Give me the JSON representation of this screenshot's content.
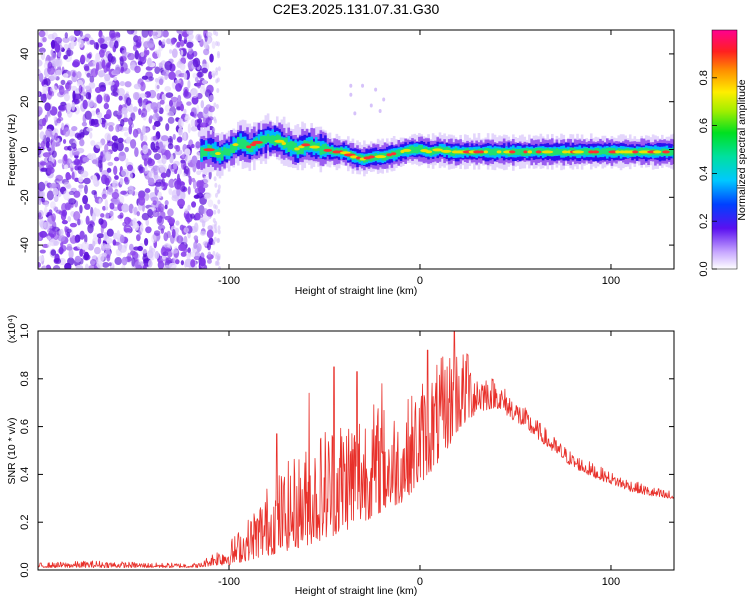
{
  "title": "C2E3.2025.131.07.31.G30",
  "colors": {
    "background": "#ffffff",
    "frame": "#000000",
    "snr_line": "#e8302a",
    "spectrogram_noise": "#8c3ee6",
    "spectrogram_signal_edge": "#1c00f0",
    "spectrogram_signal_core": "#e8302a"
  },
  "chart_data": [
    {
      "type": "heatmap",
      "name": "spectrogram",
      "xlabel": "Height of straight line (km)",
      "ylabel": "Frequency (Hz)",
      "xlim": [
        -200,
        133
      ],
      "ylim": [
        -50,
        50
      ],
      "xticks": [
        {
          "value": -100,
          "label": "-100"
        },
        {
          "value": 0,
          "label": "0"
        },
        {
          "value": 100,
          "label": "100"
        }
      ],
      "yticks": [
        {
          "value": -40,
          "label": "-40"
        },
        {
          "value": -20,
          "label": "-20"
        },
        {
          "value": 0,
          "label": "0"
        },
        {
          "value": 20,
          "label": "20"
        },
        {
          "value": 40,
          "label": "40"
        }
      ],
      "noise_region": {
        "x_from": -200,
        "x_to": -108,
        "f_from": -50,
        "f_to": 50
      },
      "signal_ridge": {
        "x": [
          -115,
          -110,
          -105,
          -100,
          -95,
          -90,
          -85,
          -80,
          -75,
          -70,
          -65,
          -60,
          -55,
          -50,
          -45,
          -40,
          -35,
          -30,
          -25,
          -20,
          -15,
          -10,
          -5,
          0,
          5,
          10,
          15,
          20,
          30,
          40,
          50,
          60,
          70,
          80,
          90,
          100,
          110,
          120,
          133
        ],
        "freq": [
          -1,
          0,
          -2,
          0,
          3,
          1,
          3,
          5,
          4,
          2,
          0,
          2,
          1,
          0,
          -1,
          -1,
          -3,
          -4,
          -3,
          -3,
          -2,
          -1,
          0,
          0,
          -1,
          0,
          -1,
          -1,
          -1,
          -1,
          -1,
          -1,
          -1,
          -1,
          -1,
          -1,
          -1,
          -1,
          -1
        ]
      },
      "colorbar": {
        "label": "Normalized spectral amplitude",
        "range": [
          0,
          1
        ],
        "ticks": [
          {
            "value": 0.0,
            "label": "0.0"
          },
          {
            "value": 0.2,
            "label": "0.2"
          },
          {
            "value": 0.4,
            "label": "0.4"
          },
          {
            "value": 0.6,
            "label": "0.6"
          },
          {
            "value": 0.8,
            "label": "0.8"
          }
        ]
      }
    },
    {
      "type": "line",
      "name": "snr",
      "xlabel": "Height of straight line (km)",
      "ylabel": "SNR (10 * v/v)",
      "yscale_label": "(x10⁴)",
      "xlim": [
        -200,
        133
      ],
      "ylim": [
        0,
        1.0
      ],
      "xticks": [
        {
          "value": -100,
          "label": "-100"
        },
        {
          "value": 0,
          "label": "0"
        },
        {
          "value": 100,
          "label": "100"
        }
      ],
      "yticks": [
        {
          "value": 0.0,
          "label": "0.0"
        },
        {
          "value": 0.2,
          "label": "0.2"
        },
        {
          "value": 0.4,
          "label": "0.4"
        },
        {
          "value": 0.6,
          "label": "0.6"
        },
        {
          "value": 0.8,
          "label": "0.8"
        },
        {
          "value": 1.0,
          "label": "1.0"
        }
      ],
      "envelope": {
        "x": [
          -200,
          -170,
          -140,
          -115,
          -108,
          -100,
          -90,
          -80,
          -70,
          -60,
          -50,
          -40,
          -30,
          -20,
          -10,
          0,
          10,
          20,
          30,
          40,
          50,
          60,
          70,
          80,
          90,
          100,
          110,
          120,
          133
        ],
        "low": [
          0.01,
          0.01,
          0.01,
          0.01,
          0.02,
          0.02,
          0.04,
          0.06,
          0.08,
          0.1,
          0.13,
          0.16,
          0.2,
          0.24,
          0.28,
          0.36,
          0.45,
          0.58,
          0.66,
          0.68,
          0.62,
          0.56,
          0.49,
          0.43,
          0.39,
          0.36,
          0.33,
          0.31,
          0.29
        ],
        "high": [
          0.03,
          0.04,
          0.03,
          0.03,
          0.08,
          0.12,
          0.22,
          0.36,
          0.45,
          0.52,
          0.62,
          0.68,
          0.72,
          0.7,
          0.68,
          0.8,
          0.88,
          0.96,
          0.86,
          0.8,
          0.72,
          0.64,
          0.56,
          0.49,
          0.45,
          0.41,
          0.38,
          0.35,
          0.33
        ]
      },
      "spikes": [
        {
          "x": -75,
          "y": 0.57
        },
        {
          "x": -58,
          "y": 0.74
        },
        {
          "x": -45,
          "y": 0.85
        },
        {
          "x": -33,
          "y": 0.83
        },
        {
          "x": -20,
          "y": 0.78
        },
        {
          "x": 4,
          "y": 0.92
        },
        {
          "x": 18,
          "y": 1.0
        },
        {
          "x": 25,
          "y": 0.9
        }
      ]
    }
  ]
}
